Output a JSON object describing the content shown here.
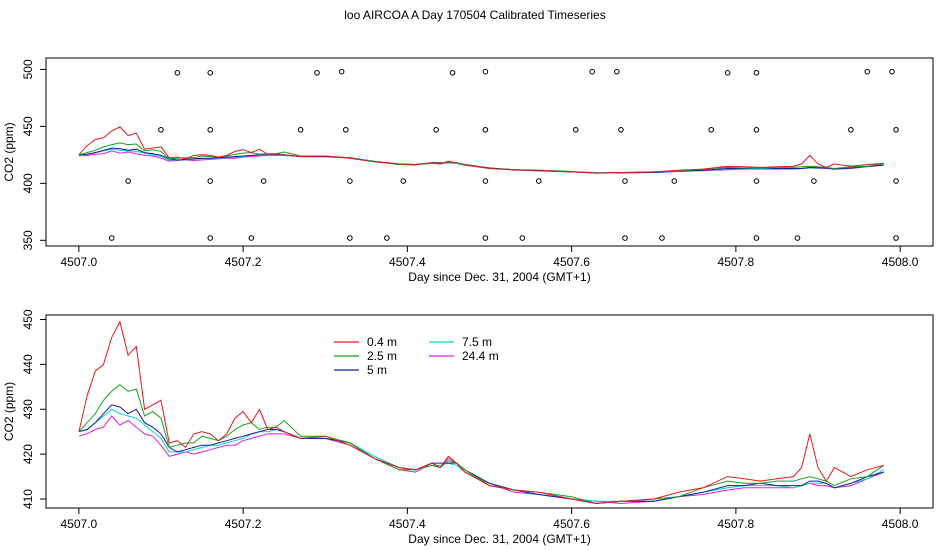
{
  "title": "loo AIRCOA A  Day 170504  Calibrated Timeseries",
  "colors": {
    "0.4 m": "#e31a1c",
    "2.5 m": "#1aa01a",
    "5 m": "#1a1aa0",
    "7.5 m": "#00d4d4",
    "24.4 m": "#e020e0",
    "flags": "#000000",
    "frame": "#000000"
  },
  "chart_data": [
    {
      "type": "line",
      "panel": "top",
      "xlabel": "Day since Dec. 31, 2004 (GMT+1)",
      "ylabel": "CO2 (ppm)",
      "xlim": [
        4506.96,
        4508.04
      ],
      "ylim": [
        345,
        510
      ],
      "xticks": [
        {
          "value": 4507.0,
          "label": "4507.0"
        },
        {
          "value": 4507.2,
          "label": "4507.2"
        },
        {
          "value": 4507.4,
          "label": "4507.4"
        },
        {
          "value": 4507.6,
          "label": "4507.6"
        },
        {
          "value": 4507.8,
          "label": "4507.8"
        },
        {
          "value": 4508.0,
          "label": "4508.0"
        }
      ],
      "yticks": [
        {
          "value": 350,
          "label": "350"
        },
        {
          "value": 400,
          "label": "400"
        },
        {
          "value": 450,
          "label": "450"
        },
        {
          "value": 500,
          "label": "500"
        }
      ],
      "series_ref": "shared_series",
      "flag_points": [
        [
          4507.12,
          497
        ],
        [
          4507.16,
          497
        ],
        [
          4507.29,
          497
        ],
        [
          4507.32,
          498
        ],
        [
          4507.455,
          497
        ],
        [
          4507.495,
          498
        ],
        [
          4507.625,
          498
        ],
        [
          4507.655,
          498
        ],
        [
          4507.79,
          497
        ],
        [
          4507.825,
          497
        ],
        [
          4507.96,
          498
        ],
        [
          4507.99,
          498
        ],
        [
          4507.1,
          447
        ],
        [
          4507.16,
          447
        ],
        [
          4507.27,
          447
        ],
        [
          4507.325,
          447
        ],
        [
          4507.435,
          447
        ],
        [
          4507.495,
          447
        ],
        [
          4507.605,
          447
        ],
        [
          4507.66,
          447
        ],
        [
          4507.77,
          447
        ],
        [
          4507.825,
          447
        ],
        [
          4507.94,
          447
        ],
        [
          4507.995,
          447
        ],
        [
          4507.06,
          402
        ],
        [
          4507.16,
          402
        ],
        [
          4507.225,
          402
        ],
        [
          4507.33,
          402
        ],
        [
          4507.395,
          402
        ],
        [
          4507.495,
          402
        ],
        [
          4507.56,
          402
        ],
        [
          4507.665,
          402
        ],
        [
          4507.725,
          402
        ],
        [
          4507.825,
          402
        ],
        [
          4507.895,
          402
        ],
        [
          4507.995,
          402
        ],
        [
          4507.04,
          352
        ],
        [
          4507.16,
          352
        ],
        [
          4507.21,
          352
        ],
        [
          4507.33,
          352
        ],
        [
          4507.375,
          352
        ],
        [
          4507.495,
          352
        ],
        [
          4507.54,
          352
        ],
        [
          4507.665,
          352
        ],
        [
          4507.71,
          352
        ],
        [
          4507.825,
          352
        ],
        [
          4507.875,
          352
        ],
        [
          4507.995,
          352
        ]
      ]
    },
    {
      "type": "line",
      "panel": "bottom",
      "xlabel": "Day since Dec. 31, 2004 (GMT+1)",
      "ylabel": "CO2 (ppm)",
      "xlim": [
        4506.96,
        4508.04
      ],
      "ylim": [
        408,
        451
      ],
      "xticks": [
        {
          "value": 4507.0,
          "label": "4507.0"
        },
        {
          "value": 4507.2,
          "label": "4507.2"
        },
        {
          "value": 4507.4,
          "label": "4507.4"
        },
        {
          "value": 4507.6,
          "label": "4507.6"
        },
        {
          "value": 4507.8,
          "label": "4507.8"
        },
        {
          "value": 4508.0,
          "label": "4508.0"
        }
      ],
      "yticks": [
        {
          "value": 410,
          "label": "410"
        },
        {
          "value": 420,
          "label": "420"
        },
        {
          "value": 430,
          "label": "430"
        },
        {
          "value": 440,
          "label": "440"
        },
        {
          "value": 450,
          "label": "450"
        }
      ],
      "legend": {
        "placement": "top-left",
        "columns": [
          [
            "0.4 m",
            "2.5 m",
            "5 m"
          ],
          [
            "7.5 m",
            "24.4 m"
          ]
        ]
      },
      "series_ref": "shared_series"
    }
  ],
  "shared_series": {
    "x": [
      4507.0,
      4507.01,
      4507.02,
      4507.03,
      4507.04,
      4507.05,
      4507.06,
      4507.07,
      4507.08,
      4507.09,
      4507.1,
      4507.11,
      4507.12,
      4507.13,
      4507.14,
      4507.15,
      4507.16,
      4507.17,
      4507.18,
      4507.19,
      4507.2,
      4507.21,
      4507.22,
      4507.23,
      4507.24,
      4507.25,
      4507.27,
      4507.3,
      4507.33,
      4507.36,
      4507.39,
      4507.41,
      4507.43,
      4507.44,
      4507.45,
      4507.46,
      4507.47,
      4507.5,
      4507.53,
      4507.56,
      4507.6,
      4507.63,
      4507.66,
      4507.7,
      4507.73,
      4507.76,
      4507.79,
      4507.81,
      4507.83,
      4507.85,
      4507.87,
      4507.88,
      4507.89,
      4507.9,
      4507.91,
      4507.92,
      4507.94,
      4507.96,
      4507.98
    ],
    "series": [
      {
        "name": "0.4 m",
        "values": [
          425,
          433,
          438.5,
          440,
          446,
          449.5,
          442,
          444,
          430,
          431,
          432,
          422.5,
          423,
          421.5,
          424.5,
          425,
          424.5,
          423,
          424.5,
          428,
          429.5,
          427,
          430,
          425.5,
          426,
          425,
          423.5,
          424,
          422,
          419,
          417,
          416.5,
          418,
          417,
          419.5,
          418,
          416,
          413,
          412,
          411.5,
          410,
          409,
          409.5,
          410,
          411.5,
          412.5,
          415,
          414.5,
          414,
          414.5,
          415,
          417,
          424.5,
          417,
          414,
          417,
          415,
          416.5,
          417.5
        ]
      },
      {
        "name": "2.5 m",
        "values": [
          425,
          427,
          429,
          432,
          434,
          435.5,
          434,
          434.5,
          428.5,
          429.5,
          428,
          421.5,
          422,
          422.5,
          422.5,
          424,
          423.5,
          423,
          424,
          425.5,
          426.5,
          427,
          425.5,
          426,
          426,
          427.5,
          424,
          424,
          422.5,
          419,
          416.5,
          416.5,
          417.5,
          417,
          418.5,
          418,
          416.5,
          413,
          412,
          411.5,
          410.5,
          409,
          409.5,
          410,
          410.5,
          412.5,
          414,
          413.5,
          413.5,
          414,
          414,
          414.5,
          415,
          414.5,
          414,
          413,
          414.5,
          415,
          417.5
        ]
      },
      {
        "name": "5 m",
        "values": [
          425,
          425.5,
          427,
          429,
          431,
          430.5,
          429,
          430,
          427,
          426,
          424.5,
          421.5,
          420.5,
          421,
          421.5,
          422,
          422,
          422.5,
          423,
          423.5,
          424,
          424.5,
          425,
          425.5,
          425.5,
          425,
          423.5,
          423.5,
          422.5,
          419,
          417,
          416.5,
          418,
          418,
          418,
          418,
          416.5,
          413.5,
          412,
          411,
          410,
          409,
          409.5,
          409.5,
          410.5,
          411.5,
          413,
          413,
          413.5,
          413,
          413,
          413,
          414,
          414,
          413.5,
          412.5,
          413.5,
          415,
          416
        ]
      },
      {
        "name": "7.5 m",
        "values": [
          425,
          425.5,
          427,
          428.5,
          430,
          429,
          428.5,
          428,
          426.5,
          425,
          423.5,
          420.5,
          420.5,
          420.5,
          421,
          421.5,
          422,
          422,
          422.5,
          423,
          423.5,
          424.5,
          425,
          425,
          425.5,
          425,
          423.5,
          423.5,
          422.5,
          419.5,
          417,
          416.5,
          417.5,
          417.5,
          418,
          417.5,
          416,
          413.5,
          412,
          411,
          410,
          409.5,
          409.5,
          409.5,
          410.5,
          411.5,
          412.5,
          413,
          413,
          413,
          412.5,
          413,
          413.5,
          413.5,
          413.5,
          412.5,
          413.5,
          414.5,
          416.5
        ]
      },
      {
        "name": "24.4 m",
        "values": [
          424,
          424.5,
          425.5,
          426,
          428.5,
          426.5,
          427.5,
          426,
          424.5,
          424,
          422,
          419.5,
          420,
          420.5,
          420,
          420.5,
          421,
          421.5,
          422,
          422,
          423,
          423.5,
          424,
          424.5,
          424.5,
          424.5,
          423.5,
          423.5,
          422,
          419,
          416.5,
          416,
          418,
          417,
          419,
          418,
          416,
          413.5,
          411.5,
          411,
          410,
          409.5,
          409,
          409.5,
          410.5,
          411,
          412,
          412.5,
          412.5,
          412.5,
          412.5,
          413,
          413.5,
          413,
          413,
          412.5,
          413,
          414.5,
          416
        ]
      }
    ]
  },
  "axes": {
    "top": {
      "xlabel": "Day since Dec. 31, 2004 (GMT+1)",
      "ylabel": "CO2 (ppm)"
    },
    "bottom": {
      "xlabel": "Day since Dec. 31, 2004 (GMT+1)",
      "ylabel": "CO2 (ppm)"
    }
  },
  "legend_labels": [
    "0.4 m",
    "2.5 m",
    "5 m",
    "7.5 m",
    "24.4 m"
  ]
}
